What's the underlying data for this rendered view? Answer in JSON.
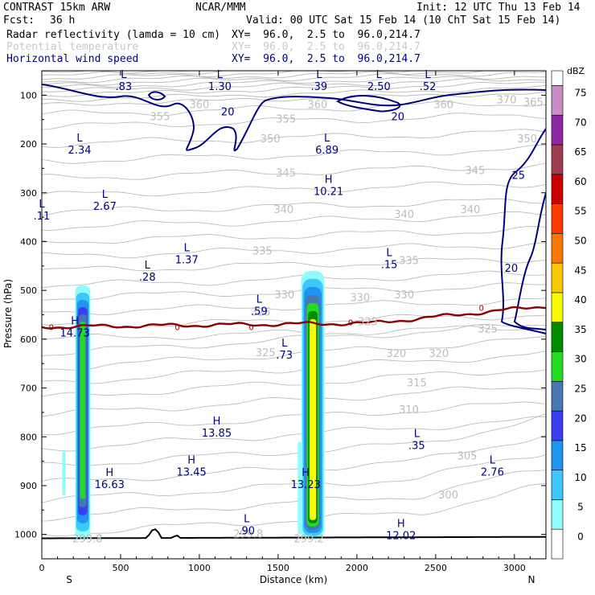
{
  "header": {
    "left1": "CONTRAST 15km ARW",
    "center1": "NCAR/MMM",
    "init": "Init: 12 UTC Thu 13 Feb 14",
    "fcst_label": "Fcst:",
    "fcst_value": "36 h",
    "valid": "Valid: 00 UTC Sat 15 Feb 14 (10 ChT Sat 15 Feb 14)",
    "fields": [
      {
        "name": "Radar reflectivity (lamda = 10 cm)",
        "xy": "XY=  96.0,  2.5 to  96.0,214.7",
        "color": "#000000"
      },
      {
        "name": "Potential temperature",
        "xy": "XY=  96.0,  2.5 to  96.0,214.7",
        "color": "#c8c8c8"
      },
      {
        "name": "Horizontal wind speed",
        "xy": "XY=  96.0,  2.5 to  96.0,214.7",
        "color": "#00007a"
      }
    ]
  },
  "chart_data": {
    "type": "contour cross-section",
    "xlabel": "Distance (km)",
    "ylabel": "Pressure (hPa)",
    "x_ticks": [
      0,
      500,
      1000,
      1500,
      2000,
      2500,
      3000
    ],
    "y_ticks": [
      100,
      200,
      300,
      400,
      500,
      600,
      700,
      800,
      900,
      1000
    ],
    "xlim": [
      0,
      3200
    ],
    "ylim": [
      1050,
      50
    ],
    "x_end_labels": {
      "left": "S",
      "right": "N"
    },
    "colorbar": {
      "unit": "dBZ",
      "levels": [
        0,
        5,
        10,
        15,
        20,
        25,
        30,
        35,
        40,
        45,
        50,
        55,
        60,
        65,
        70,
        75
      ],
      "colors": [
        "#ffffff",
        "#8ffcfc",
        "#3cc8fa",
        "#1e96f0",
        "#3c3cf0",
        "#4678b4",
        "#22dc22",
        "#008c00",
        "#fafa00",
        "#fac800",
        "#fa7800",
        "#fa3c00",
        "#c80000",
        "#a03c50",
        "#8c28a0",
        "#c88cc8"
      ]
    },
    "reflectivity_columns": [
      {
        "x": 260,
        "top_hpa": 490,
        "bottom_hpa": 1010,
        "max_dbz": 30
      },
      {
        "x": 1720,
        "top_hpa": 460,
        "bottom_hpa": 1010,
        "max_dbz": 40
      }
    ],
    "theta_contour_labels": [
      {
        "x": 1750,
        "p": 120,
        "text": "360"
      },
      {
        "x": 2550,
        "p": 120,
        "text": "360"
      },
      {
        "x": 2950,
        "p": 110,
        "text": "370"
      },
      {
        "x": 3120,
        "p": 115,
        "text": "365"
      },
      {
        "x": 1000,
        "p": 120,
        "text": "360"
      },
      {
        "x": 750,
        "p": 145,
        "text": "355"
      },
      {
        "x": 1550,
        "p": 150,
        "text": "355"
      },
      {
        "x": 1450,
        "p": 190,
        "text": "350"
      },
      {
        "x": 3080,
        "p": 190,
        "text": "350"
      },
      {
        "x": 1550,
        "p": 260,
        "text": "345"
      },
      {
        "x": 2750,
        "p": 255,
        "text": "345"
      },
      {
        "x": 1535,
        "p": 335,
        "text": "340"
      },
      {
        "x": 2300,
        "p": 345,
        "text": "340"
      },
      {
        "x": 2720,
        "p": 335,
        "text": "340"
      },
      {
        "x": 1400,
        "p": 420,
        "text": "335"
      },
      {
        "x": 2330,
        "p": 440,
        "text": "335"
      },
      {
        "x": 1540,
        "p": 510,
        "text": "330"
      },
      {
        "x": 2020,
        "p": 515,
        "text": "330"
      },
      {
        "x": 2300,
        "p": 510,
        "text": "330"
      },
      {
        "x": 1390,
        "p": 545,
        "text": "325"
      },
      {
        "x": 2070,
        "p": 565,
        "text": "325"
      },
      {
        "x": 2830,
        "p": 580,
        "text": "325"
      },
      {
        "x": 1420,
        "p": 628,
        "text": "325"
      },
      {
        "x": 2250,
        "p": 630,
        "text": "320"
      },
      {
        "x": 2520,
        "p": 630,
        "text": "320"
      },
      {
        "x": 2380,
        "p": 690,
        "text": "315"
      },
      {
        "x": 2330,
        "p": 745,
        "text": "310"
      },
      {
        "x": 2700,
        "p": 840,
        "text": "305"
      },
      {
        "x": 2580,
        "p": 920,
        "text": "300"
      },
      {
        "x": 1310,
        "p": 1000,
        "text": "299.8"
      },
      {
        "x": 290,
        "p": 1010,
        "text": "299.8"
      },
      {
        "x": 1695,
        "p": 1010,
        "text": "299.2"
      }
    ],
    "wind_contour_labels": [
      {
        "x": 1180,
        "p": 135,
        "text": "20"
      },
      {
        "x": 2260,
        "p": 145,
        "text": "20"
      },
      {
        "x": 3025,
        "p": 265,
        "text": "25"
      },
      {
        "x": 2980,
        "p": 455,
        "text": "20"
      }
    ],
    "zero_line_labels": [
      {
        "x": 60,
        "p": 575,
        "text": "0"
      },
      {
        "x": 860,
        "p": 575,
        "text": "0"
      },
      {
        "x": 1330,
        "p": 575,
        "text": "0"
      },
      {
        "x": 1960,
        "p": 565,
        "text": "0"
      },
      {
        "x": 2790,
        "p": 535,
        "text": "0"
      }
    ],
    "hl_labels": [
      {
        "x": 520,
        "p": 65,
        "kind": "L",
        "value": ".83"
      },
      {
        "x": 1130,
        "p": 65,
        "kind": "L",
        "value": "1.30"
      },
      {
        "x": 1760,
        "p": 65,
        "kind": "L",
        "value": ".39"
      },
      {
        "x": 2140,
        "p": 65,
        "kind": "L",
        "value": "2.50"
      },
      {
        "x": 2450,
        "p": 65,
        "kind": "L",
        "value": ".52"
      },
      {
        "x": 240,
        "p": 195,
        "kind": "L",
        "value": "2.34"
      },
      {
        "x": 1810,
        "p": 195,
        "kind": "L",
        "value": "6.89"
      },
      {
        "x": 1820,
        "p": 280,
        "kind": "H",
        "value": "10.21"
      },
      {
        "x": 400,
        "p": 310,
        "kind": "L",
        "value": "2.67"
      },
      {
        "x": 0,
        "p": 330,
        "kind": "L",
        "value": ".11"
      },
      {
        "x": 920,
        "p": 420,
        "kind": "L",
        "value": "1.37"
      },
      {
        "x": 2205,
        "p": 430,
        "kind": "L",
        "value": ".15"
      },
      {
        "x": 670,
        "p": 455,
        "kind": "L",
        "value": ".28"
      },
      {
        "x": 1380,
        "p": 525,
        "kind": "L",
        "value": ".59"
      },
      {
        "x": 210,
        "p": 570,
        "kind": "H",
        "value": "14.73"
      },
      {
        "x": 1540,
        "p": 615,
        "kind": "L",
        "value": ".73"
      },
      {
        "x": 1110,
        "p": 775,
        "kind": "H",
        "value": "13.85"
      },
      {
        "x": 2380,
        "p": 800,
        "kind": "L",
        "value": ".35"
      },
      {
        "x": 950,
        "p": 855,
        "kind": "H",
        "value": "13.45"
      },
      {
        "x": 2860,
        "p": 855,
        "kind": "L",
        "value": "2.76"
      },
      {
        "x": 430,
        "p": 880,
        "kind": "H",
        "value": "16.63"
      },
      {
        "x": 1675,
        "p": 880,
        "kind": "H",
        "value": "13.23"
      },
      {
        "x": 1300,
        "p": 975,
        "kind": "L",
        "value": ".90"
      },
      {
        "x": 2280,
        "p": 985,
        "kind": "H",
        "value": "12.02"
      }
    ]
  }
}
